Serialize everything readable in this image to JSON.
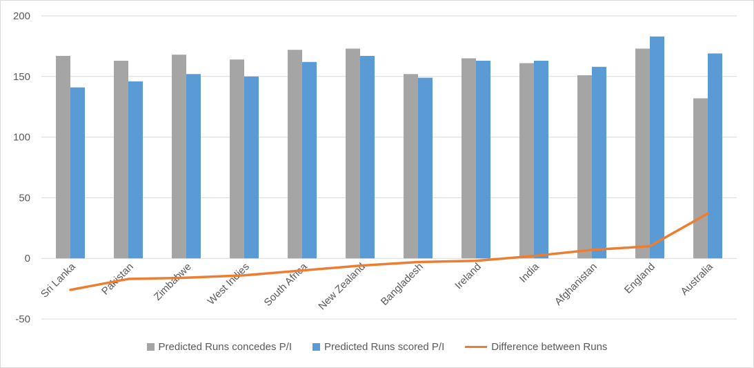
{
  "chart_data": {
    "type": "bar",
    "categories": [
      "Sri Lanka",
      "Pakistan",
      "Zimbabwe",
      "West Indies",
      "South Africa",
      "New Zealand",
      "Bangladesh",
      "Ireland",
      "India",
      "Afghanistan",
      "England",
      "Australia"
    ],
    "series": [
      {
        "name": "Predicted Runs concedes P/I",
        "type": "bar",
        "color": "#a5a5a5",
        "values": [
          167,
          163,
          168,
          164,
          172,
          173,
          152,
          165,
          161,
          151,
          173,
          132
        ]
      },
      {
        "name": "Predicted Runs scored P/I",
        "type": "bar",
        "color": "#5b9bd5",
        "values": [
          141,
          146,
          152,
          150,
          162,
          167,
          149,
          163,
          163,
          158,
          183,
          169
        ]
      },
      {
        "name": "Difference between Runs",
        "type": "line",
        "color": "#ed7d31",
        "values": [
          -26,
          -17,
          -16,
          -14,
          -10,
          -6,
          -3,
          -2,
          2,
          7,
          10,
          37
        ]
      }
    ],
    "title": "",
    "xlabel": "",
    "ylabel": "",
    "ylim": [
      -50,
      200
    ],
    "yticks": [
      -50,
      0,
      50,
      100,
      150,
      200
    ],
    "grid": true,
    "legend": "bottom"
  }
}
